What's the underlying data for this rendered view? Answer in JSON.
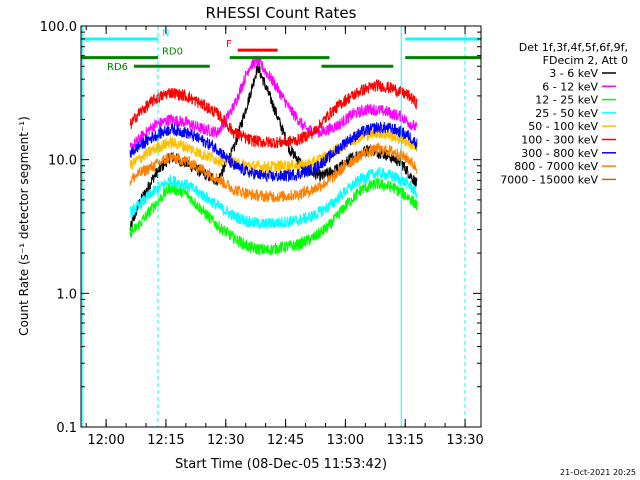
{
  "chart_data": {
    "type": "line",
    "title": "RHESSI Count Rates",
    "xlabel": "Start Time (08-Dec-05 11:53:42)",
    "ylabel": "Count Rate (s⁻¹ detector segment⁻¹)",
    "y_scale": "log",
    "ylim": [
      0.1,
      100
    ],
    "xlim": [
      "11:53:42",
      "13:34"
    ],
    "x_ticks": [
      "12:00",
      "12:15",
      "12:30",
      "12:45",
      "13:00",
      "13:15",
      "13:30"
    ],
    "y_ticks": [
      "0.1",
      "1.0",
      "10.0",
      "100.0"
    ],
    "legend_position": "right",
    "legend_header": [
      "Det 1f,3f,4f,5f,6f,9f,",
      "FDecim 2, Att 0"
    ],
    "series": [
      {
        "name": "3 - 6 keV",
        "color": "#000000",
        "x": [
          "12:06",
          "12:08",
          "12:12",
          "12:16",
          "12:20",
          "12:24",
          "12:28",
          "12:32",
          "12:36",
          "12:38",
          "12:42",
          "12:46",
          "12:50",
          "12:54",
          "12:58",
          "13:02",
          "13:06",
          "13:10",
          "13:14",
          "13:18"
        ],
        "y": [
          3.0,
          4.5,
          7.5,
          10.5,
          9.5,
          8.0,
          7.0,
          12,
          30,
          50,
          25,
          12,
          8.5,
          7.5,
          8.5,
          10.5,
          12,
          11,
          9.5,
          6.5
        ]
      },
      {
        "name": "6 - 12 keV",
        "color": "#ff00ff",
        "x": [
          "12:06",
          "12:08",
          "12:12",
          "12:16",
          "12:20",
          "12:24",
          "12:28",
          "12:32",
          "12:36",
          "12:38",
          "12:42",
          "12:46",
          "12:50",
          "12:54",
          "12:58",
          "13:02",
          "13:06",
          "13:10",
          "13:14",
          "13:18"
        ],
        "y": [
          12,
          14,
          18,
          20,
          19,
          17,
          16,
          25,
          50,
          55,
          38,
          24,
          17,
          16,
          18,
          22,
          24,
          23,
          21,
          17
        ]
      },
      {
        "name": "12 - 25 keV",
        "color": "#00ff00",
        "x": [
          "12:06",
          "12:08",
          "12:12",
          "12:16",
          "12:20",
          "12:24",
          "12:28",
          "12:32",
          "12:36",
          "12:40",
          "12:44",
          "12:48",
          "12:52",
          "12:56",
          "13:00",
          "13:04",
          "13:08",
          "13:12",
          "13:16",
          "13:18"
        ],
        "y": [
          2.8,
          3.2,
          4.5,
          6.2,
          5.6,
          4.2,
          3.2,
          2.6,
          2.2,
          2.1,
          2.2,
          2.3,
          2.6,
          3.2,
          4.5,
          6.0,
          6.6,
          6.2,
          5.2,
          4.5
        ]
      },
      {
        "name": "25 - 50 keV",
        "color": "#00ffff",
        "x": [
          "12:06",
          "12:08",
          "12:12",
          "12:16",
          "12:20",
          "12:24",
          "12:28",
          "12:32",
          "12:36",
          "12:40",
          "12:44",
          "12:48",
          "12:52",
          "12:56",
          "13:00",
          "13:04",
          "13:08",
          "13:12",
          "13:16",
          "13:18"
        ],
        "y": [
          4.0,
          4.5,
          5.8,
          7.0,
          6.5,
          5.5,
          4.5,
          3.8,
          3.4,
          3.3,
          3.4,
          3.5,
          3.8,
          4.5,
          5.8,
          7.2,
          8.0,
          7.5,
          6.5,
          5.5
        ]
      },
      {
        "name": "50 - 100 keV",
        "color": "#ffbf00",
        "x": [
          "12:06",
          "12:08",
          "12:12",
          "12:16",
          "12:20",
          "12:24",
          "12:28",
          "12:32",
          "12:36",
          "12:40",
          "12:44",
          "12:48",
          "12:52",
          "12:56",
          "13:00",
          "13:04",
          "13:08",
          "13:12",
          "13:16",
          "13:18"
        ],
        "y": [
          9.0,
          10,
          12,
          13.5,
          12.5,
          11,
          10,
          9.5,
          9.0,
          8.8,
          9.0,
          9.0,
          9.5,
          11,
          13,
          15,
          16,
          15,
          13.5,
          12
        ]
      },
      {
        "name": "100 - 300 keV",
        "color": "#ff0000",
        "x": [
          "12:06",
          "12:08",
          "12:12",
          "12:16",
          "12:20",
          "12:24",
          "12:28",
          "12:32",
          "12:36",
          "12:40",
          "12:44",
          "12:48",
          "12:52",
          "12:56",
          "13:00",
          "13:04",
          "13:08",
          "13:12",
          "13:16",
          "13:18"
        ],
        "y": [
          18,
          22,
          28,
          32,
          30,
          26,
          22,
          16,
          14,
          13.5,
          13.5,
          14,
          16,
          22,
          28,
          33,
          36,
          34,
          30,
          26
        ]
      },
      {
        "name": "300 - 800 keV",
        "color": "#0000ff",
        "x": [
          "12:06",
          "12:08",
          "12:12",
          "12:16",
          "12:20",
          "12:24",
          "12:28",
          "12:32",
          "12:36",
          "12:40",
          "12:44",
          "12:48",
          "12:52",
          "12:56",
          "13:00",
          "13:04",
          "13:08",
          "13:12",
          "13:16",
          "13:18"
        ],
        "y": [
          11,
          12.5,
          15,
          17,
          16,
          14,
          12,
          9,
          8,
          7.5,
          7.5,
          7.8,
          8.5,
          10.5,
          13.5,
          16,
          17.5,
          17,
          15,
          13
        ]
      },
      {
        "name": "800 - 7000 keV",
        "color": "#ff8000",
        "x": [
          "12:06",
          "12:08",
          "12:12",
          "12:16",
          "12:20",
          "12:24",
          "12:28",
          "12:32",
          "12:36",
          "12:40",
          "12:44",
          "12:48",
          "12:52",
          "12:56",
          "13:00",
          "13:04",
          "13:08",
          "13:12",
          "13:16",
          "13:18"
        ],
        "y": [
          7.0,
          7.8,
          9.0,
          10.5,
          9.8,
          8.5,
          7.2,
          6.0,
          5.5,
          5.3,
          5.3,
          5.5,
          6.0,
          7.0,
          9.0,
          11,
          12,
          11.5,
          10,
          8.5
        ]
      },
      {
        "name": "7000 - 15000 keV",
        "color": "#a08000",
        "x": [],
        "y": []
      }
    ],
    "annotations": [
      {
        "label": "N",
        "color": "#00ffff",
        "segments": [
          [
            "11:53:42",
            "12:13"
          ],
          [
            "13:15",
            "13:34"
          ]
        ],
        "level": 80
      },
      {
        "label": "F",
        "color": "#ff0000",
        "segments": [
          [
            "12:33",
            "12:43"
          ]
        ],
        "level": 66
      },
      {
        "label": "RD0",
        "color": "#008000",
        "segments": [
          [
            "11:53:42",
            "12:13"
          ],
          [
            "12:31",
            "12:56"
          ],
          [
            "13:15",
            "13:34"
          ]
        ],
        "level": 58
      },
      {
        "label": "RD6",
        "color": "#008000",
        "segments": [
          [
            "12:07",
            "12:26"
          ],
          [
            "12:54",
            "13:12"
          ]
        ],
        "level": 50
      }
    ],
    "vertical_lines": {
      "solid": {
        "color": "#00ffff",
        "times": [
          "11:54",
          "13:14"
        ]
      },
      "dashed": {
        "color": "#00ffff",
        "times": [
          "12:13",
          "13:30"
        ]
      }
    }
  },
  "footer_date": "21-Oct-2021 20:25"
}
